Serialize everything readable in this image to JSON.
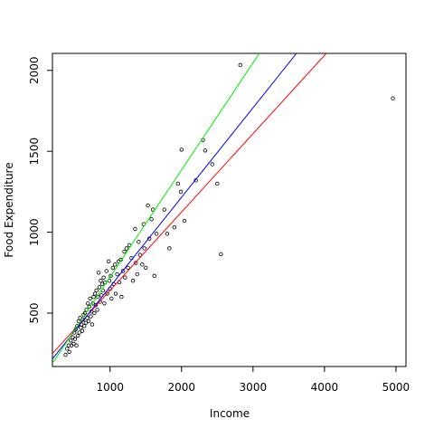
{
  "chart_data": {
    "type": "scatter",
    "x_label": "Income",
    "y_label": "Food Expenditure",
    "xlim": [
      194,
      5140
    ],
    "ylim": [
      170,
      2105
    ],
    "xticks": [
      1000,
      2000,
      3000,
      4000,
      5000
    ],
    "yticks": [
      500,
      1000,
      1500,
      2000
    ],
    "point_color": "#000000",
    "x": [
      377,
      400,
      420,
      430,
      450,
      460,
      480,
      490,
      500,
      510,
      520,
      530,
      540,
      550,
      560,
      570,
      580,
      590,
      600,
      610,
      620,
      630,
      640,
      650,
      660,
      670,
      680,
      690,
      700,
      710,
      720,
      730,
      740,
      750,
      760,
      770,
      780,
      790,
      800,
      810,
      820,
      830,
      840,
      850,
      860,
      870,
      880,
      890,
      900,
      910,
      920,
      930,
      950,
      960,
      980,
      990,
      1000,
      1010,
      1020,
      1040,
      1050,
      1070,
      1080,
      1100,
      1120,
      1130,
      1150,
      1160,
      1180,
      1200,
      1210,
      1230,
      1250,
      1270,
      1300,
      1320,
      1350,
      1360,
      1380,
      1400,
      1420,
      1450,
      1470,
      1480,
      1500,
      1530,
      1550,
      1580,
      1600,
      1620,
      1650,
      1760,
      1800,
      1830,
      1900,
      1950,
      1990,
      2000,
      2040,
      2200,
      2300,
      2330,
      2430,
      2500,
      2551,
      2822,
      4957
    ],
    "values": [
      242,
      280,
      300,
      260,
      330,
      300,
      350,
      310,
      380,
      340,
      400,
      300,
      420,
      360,
      450,
      380,
      470,
      410,
      430,
      390,
      460,
      490,
      420,
      500,
      440,
      520,
      470,
      560,
      450,
      540,
      590,
      480,
      510,
      430,
      560,
      600,
      500,
      620,
      550,
      640,
      520,
      600,
      750,
      660,
      570,
      700,
      610,
      680,
      640,
      720,
      560,
      690,
      760,
      620,
      820,
      700,
      650,
      730,
      590,
      780,
      680,
      800,
      620,
      740,
      820,
      690,
      830,
      600,
      760,
      880,
      720,
      900,
      780,
      920,
      840,
      700,
      1020,
      810,
      740,
      940,
      860,
      800,
      1050,
      900,
      780,
      1165,
      960,
      1080,
      1140,
      730,
      990,
      1140,
      990,
      900,
      1030,
      1300,
      1250,
      1510,
      1070,
      1320,
      1570,
      1505,
      1420,
      1300,
      864,
      2033,
      1827
    ],
    "lines": [
      {
        "color": "#ff0000",
        "x": [
          194,
          4025
        ],
        "values": [
          250,
          2105
        ]
      },
      {
        "color": "#0000ff",
        "x": [
          194,
          3608
        ],
        "values": [
          217,
          2105
        ]
      },
      {
        "color": "#00ee00",
        "x": [
          194,
          3089
        ],
        "values": [
          190,
          2105
        ]
      }
    ]
  }
}
